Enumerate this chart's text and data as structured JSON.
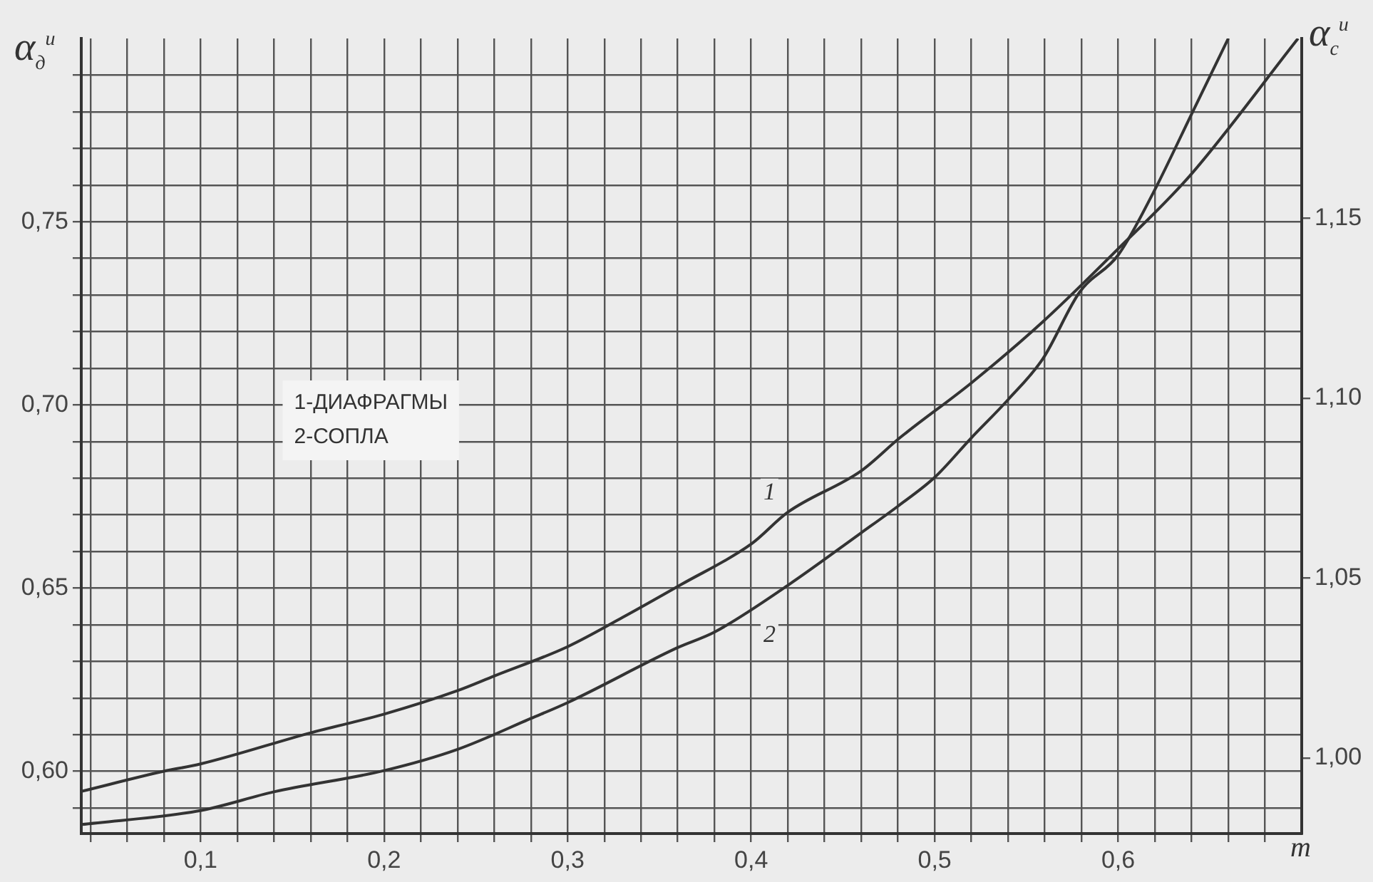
{
  "chart_data": {
    "type": "line",
    "xlabel": "m",
    "ylabel": "α$_{д}$$^{и}$",
    "y2label": "α$_{с}$$^{и}$",
    "xlim": [
      0.035,
      0.7
    ],
    "ylim": [
      0.583,
      0.8
    ],
    "y2lim": [
      0.979,
      1.2
    ],
    "xticks": [
      {
        "value": 0.04,
        "label": null
      },
      {
        "value": 0.06,
        "label": null
      },
      {
        "value": 0.08,
        "label": null
      },
      {
        "value": 0.1,
        "label": "0,1"
      },
      {
        "value": 0.12,
        "label": null
      },
      {
        "value": 0.14,
        "label": null
      },
      {
        "value": 0.16,
        "label": null
      },
      {
        "value": 0.18,
        "label": null
      },
      {
        "value": 0.2,
        "label": "0,2"
      },
      {
        "value": 0.22,
        "label": null
      },
      {
        "value": 0.24,
        "label": null
      },
      {
        "value": 0.26,
        "label": null
      },
      {
        "value": 0.28,
        "label": null
      },
      {
        "value": 0.3,
        "label": "0,3"
      },
      {
        "value": 0.32,
        "label": null
      },
      {
        "value": 0.34,
        "label": null
      },
      {
        "value": 0.36,
        "label": null
      },
      {
        "value": 0.38,
        "label": null
      },
      {
        "value": 0.4,
        "label": "0,4"
      },
      {
        "value": 0.42,
        "label": null
      },
      {
        "value": 0.44,
        "label": null
      },
      {
        "value": 0.46,
        "label": null
      },
      {
        "value": 0.48,
        "label": null
      },
      {
        "value": 0.5,
        "label": "0,5"
      },
      {
        "value": 0.52,
        "label": null
      },
      {
        "value": 0.54,
        "label": null
      },
      {
        "value": 0.56,
        "label": null
      },
      {
        "value": 0.58,
        "label": null
      },
      {
        "value": 0.6,
        "label": "0,6"
      },
      {
        "value": 0.62,
        "label": null
      },
      {
        "value": 0.64,
        "label": null
      },
      {
        "value": 0.66,
        "label": null
      },
      {
        "value": 0.68,
        "label": null
      }
    ],
    "yticks": [
      {
        "value": 0.59,
        "label": null
      },
      {
        "value": 0.6,
        "label": "0,60"
      },
      {
        "value": 0.61,
        "label": null
      },
      {
        "value": 0.62,
        "label": null
      },
      {
        "value": 0.63,
        "label": null
      },
      {
        "value": 0.64,
        "label": null
      },
      {
        "value": 0.65,
        "label": "0,65"
      },
      {
        "value": 0.66,
        "label": null
      },
      {
        "value": 0.67,
        "label": null
      },
      {
        "value": 0.68,
        "label": null
      },
      {
        "value": 0.69,
        "label": null
      },
      {
        "value": 0.7,
        "label": "0,70"
      },
      {
        "value": 0.71,
        "label": null
      },
      {
        "value": 0.72,
        "label": null
      },
      {
        "value": 0.73,
        "label": null
      },
      {
        "value": 0.74,
        "label": null
      },
      {
        "value": 0.75,
        "label": "0,75"
      },
      {
        "value": 0.76,
        "label": null
      },
      {
        "value": 0.77,
        "label": null
      },
      {
        "value": 0.78,
        "label": null
      },
      {
        "value": 0.79,
        "label": null
      }
    ],
    "y2ticks": [
      {
        "value": 1.0,
        "label": "1,00"
      },
      {
        "value": 1.05,
        "label": "1,05"
      },
      {
        "value": 1.1,
        "label": "1,10"
      },
      {
        "value": 1.15,
        "label": "1,15"
      }
    ],
    "grid": true,
    "series": [
      {
        "color": "#333333",
        "x": [
          0.035,
          0.08,
          0.1,
          0.16,
          0.2,
          0.24,
          0.26,
          0.3,
          0.33,
          0.362,
          0.4,
          0.42,
          0.46,
          0.481,
          0.52,
          0.559,
          0.6,
          0.639,
          0.698
        ],
        "values": [
          0.5945,
          0.6,
          0.602,
          0.6105,
          0.6156,
          0.622,
          0.626,
          0.634,
          0.642,
          0.651,
          0.662,
          0.6707,
          0.682,
          0.691,
          0.706,
          0.7227,
          0.7426,
          0.7625,
          0.8
        ]
      },
      {
        "color": "#333333",
        "axis": "y2",
        "x": [
          0.035,
          0.1,
          0.14,
          0.2,
          0.24,
          0.28,
          0.3,
          0.36,
          0.38,
          0.42,
          0.46,
          0.48,
          0.5,
          0.52,
          0.54,
          0.559,
          0.579,
          0.6,
          0.619,
          0.64,
          0.66
        ],
        "values": [
          0.9815,
          0.9854,
          0.9906,
          0.9965,
          1.0024,
          1.011,
          1.0154,
          1.0307,
          1.035,
          1.048,
          1.0626,
          1.07,
          1.078,
          1.089,
          1.0996,
          1.111,
          1.1295,
          1.1398,
          1.157,
          1.179,
          1.2
        ]
      }
    ],
    "annotations": [
      "1-ДИАФРАГМЫ",
      "2-СОПЛА",
      {
        "text": "1",
        "x": 0.41,
        "y": 0.676
      },
      {
        "text": "2",
        "x": 0.41,
        "y": 0.637
      }
    ]
  }
}
